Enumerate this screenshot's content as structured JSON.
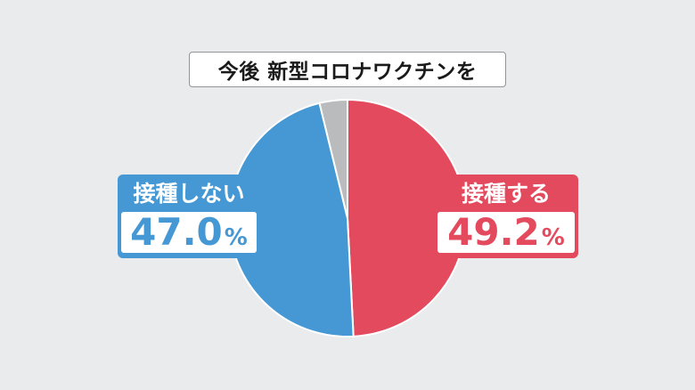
{
  "title": "今後 新型コロナワクチンを",
  "colors": {
    "refuse": "#4598d3",
    "accept": "#e44a5d",
    "other": "#b9bbbd",
    "background": "#e9ebec"
  },
  "labels": {
    "refuse": {
      "text": "接種しない",
      "value": "47.0",
      "unit": "%"
    },
    "accept": {
      "text": "接種する",
      "value": "49.2",
      "unit": "%"
    }
  },
  "chart_data": {
    "type": "pie",
    "title": "今後 新型コロナワクチンを",
    "slices": [
      {
        "label": "接種する",
        "value": 49.2,
        "color": "#e44a5d"
      },
      {
        "label": "接種しない",
        "value": 47.0,
        "color": "#4598d3"
      },
      {
        "label": "",
        "value": 3.8,
        "color": "#b9bbbd"
      }
    ]
  }
}
